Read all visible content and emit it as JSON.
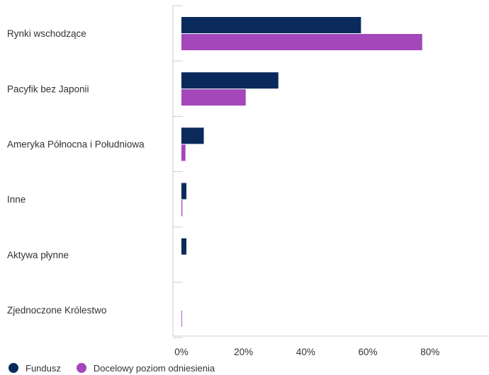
{
  "chart_data": {
    "type": "bar",
    "orientation": "horizontal",
    "title": "",
    "xlabel": "",
    "ylabel": "",
    "categories": [
      "Rynki wschodzące",
      "Pacyfik bez Japonii",
      "Ameryka Północna i Południowa",
      "Inne",
      "Aktywa płynne",
      "Zjednoczone Królestwo"
    ],
    "series": [
      {
        "name": "Fundusz",
        "color": "#0b2a5c",
        "values": [
          57.8,
          31.2,
          7.2,
          1.6,
          1.6,
          0.0
        ]
      },
      {
        "name": "Docelowy poziom odniesienia",
        "color": "#a347ba",
        "values": [
          77.5,
          20.7,
          1.3,
          0.3,
          0.0,
          0.2
        ]
      }
    ],
    "xlim": [
      0,
      99
    ],
    "xticks": [
      0,
      20,
      40,
      60,
      80
    ],
    "xtick_labels": [
      "0%",
      "20%",
      "40%",
      "60%",
      "80%"
    ],
    "grid": false,
    "legend_position": "bottom-left"
  }
}
